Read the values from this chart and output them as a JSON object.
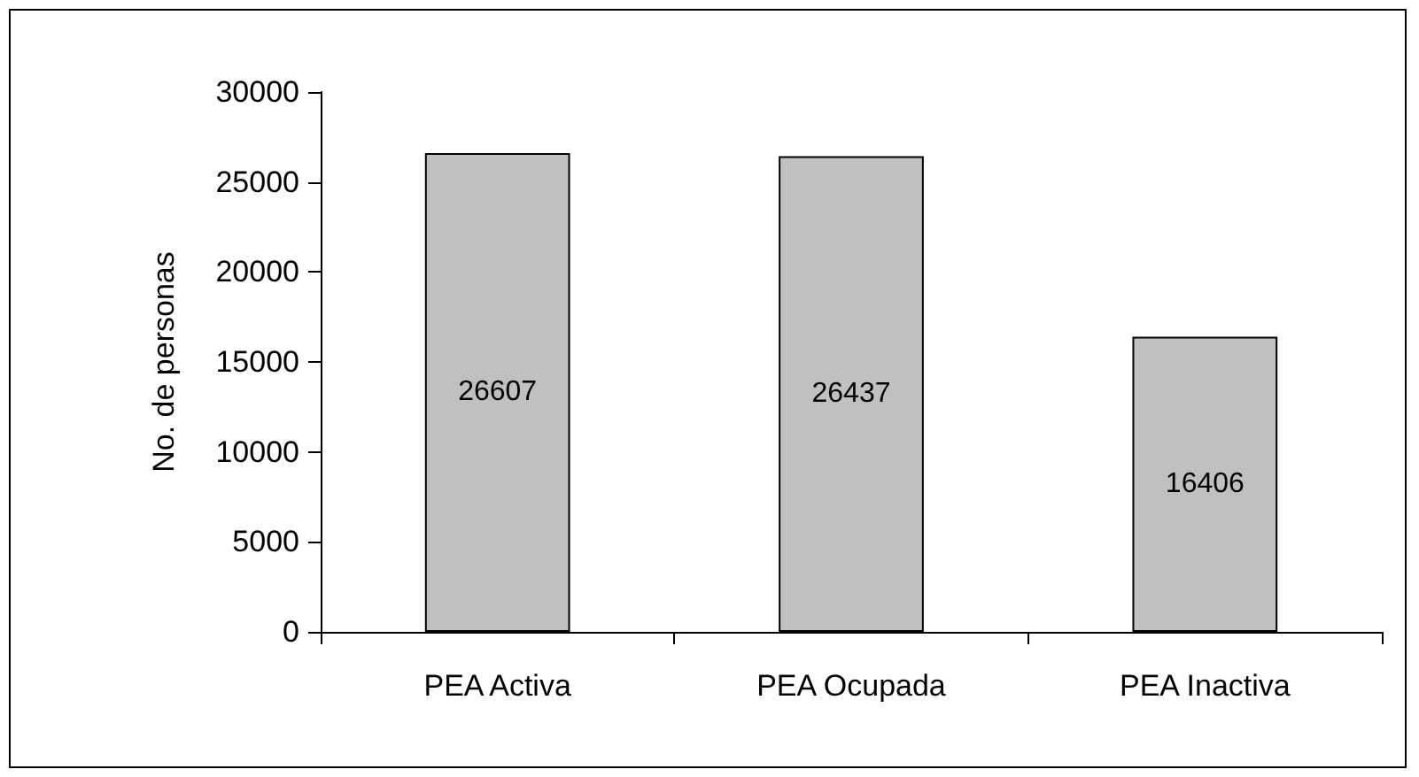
{
  "chart_data": {
    "type": "bar",
    "ylabel": "No. de personas",
    "categories": [
      "PEA Activa",
      "PEA Ocupada",
      "PEA Inactiva"
    ],
    "values": [
      26607,
      26437,
      16406
    ],
    "color": "#c0c0c0",
    "ylim": [
      0,
      30000
    ],
    "yticks": [
      0,
      5000,
      10000,
      15000,
      20000,
      25000,
      30000
    ],
    "grid": false,
    "data_labels": true
  }
}
